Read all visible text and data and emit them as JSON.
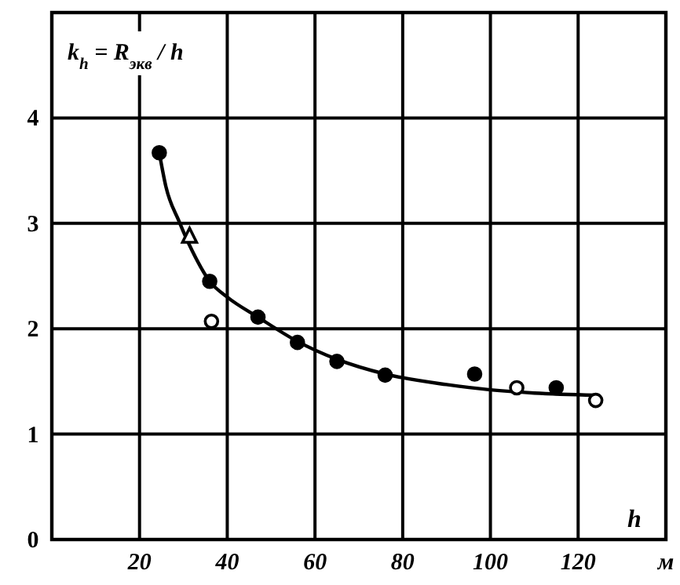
{
  "chart_data": {
    "type": "scatter",
    "ylabel": "k$_{h}$ = R$_{экв}$ / h",
    "xlabel": "h",
    "xlim": [
      0,
      140
    ],
    "ylim": [
      0,
      5
    ],
    "xticks": [
      20,
      40,
      60,
      80,
      100,
      120,
      {
        "value": 140,
        "label": "м"
      }
    ],
    "yticks": [
      0,
      1,
      2,
      3,
      4,
      {
        "value": 5,
        "label": null
      }
    ],
    "grid": true,
    "series": [
      {
        "type": "line",
        "color": "#000000",
        "marker": "none",
        "line_style": "solid",
        "x": [
          24.5,
          26,
          29,
          32,
          36,
          40,
          47,
          56,
          65,
          76,
          90,
          100,
          110,
          124
        ],
        "values": [
          3.67,
          3.35,
          3.02,
          2.74,
          2.45,
          2.3,
          2.11,
          1.88,
          1.71,
          1.57,
          1.47,
          1.42,
          1.39,
          1.37
        ]
      },
      {
        "color": "#000000",
        "marker": "circle",
        "x": [
          24.5,
          36,
          47,
          56,
          65,
          76,
          96.4,
          115
        ],
        "values": [
          3.67,
          2.45,
          2.11,
          1.87,
          1.69,
          1.56,
          1.57,
          1.44
        ]
      },
      {
        "color": "#ffffff",
        "marker": "circle",
        "x": [
          36.4,
          106,
          124
        ],
        "values": [
          2.07,
          1.44,
          1.32
        ]
      },
      {
        "color": "#ffffff",
        "marker": "triangle",
        "x": [
          31.4
        ],
        "values": [
          2.88
        ]
      }
    ]
  }
}
